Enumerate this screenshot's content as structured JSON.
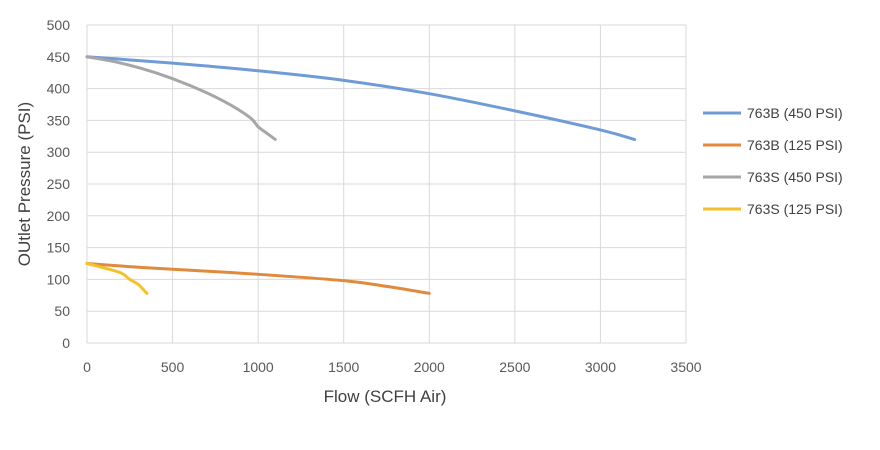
{
  "chart_data": {
    "type": "line",
    "title": "",
    "xlabel": "Flow (SCFH Air)",
    "ylabel": "OUtlet Pressure (PSI)",
    "xlim": [
      0,
      3500
    ],
    "ylim": [
      0,
      500
    ],
    "xticks": [
      0,
      500,
      1000,
      1500,
      2000,
      2500,
      3000,
      3500
    ],
    "yticks": [
      0,
      50,
      100,
      150,
      200,
      250,
      300,
      350,
      400,
      450,
      500
    ],
    "grid": true,
    "legend_position": "right",
    "series": [
      {
        "name": "763B (450 PSI)",
        "color": "#6f9bd6",
        "x": [
          0,
          500,
          1000,
          1500,
          2000,
          2500,
          3000,
          3200
        ],
        "y": [
          450,
          440,
          428,
          413,
          392,
          365,
          335,
          320
        ]
      },
      {
        "name": "763B (125 PSI)",
        "color": "#e08a3c",
        "x": [
          0,
          250,
          500,
          1000,
          1500,
          1750,
          2000
        ],
        "y": [
          125,
          120,
          116,
          108,
          98,
          89,
          78
        ]
      },
      {
        "name": "763S (450 PSI)",
        "color": "#a6a6a6",
        "x": [
          0,
          200,
          400,
          600,
          800,
          950,
          1000,
          1050,
          1100
        ],
        "y": [
          450,
          440,
          425,
          405,
          380,
          355,
          340,
          330,
          320
        ]
      },
      {
        "name": "763S (125 PSI)",
        "color": "#f5c02a",
        "x": [
          0,
          100,
          200,
          250,
          300,
          350
        ],
        "y": [
          125,
          118,
          110,
          100,
          92,
          78
        ]
      }
    ]
  }
}
